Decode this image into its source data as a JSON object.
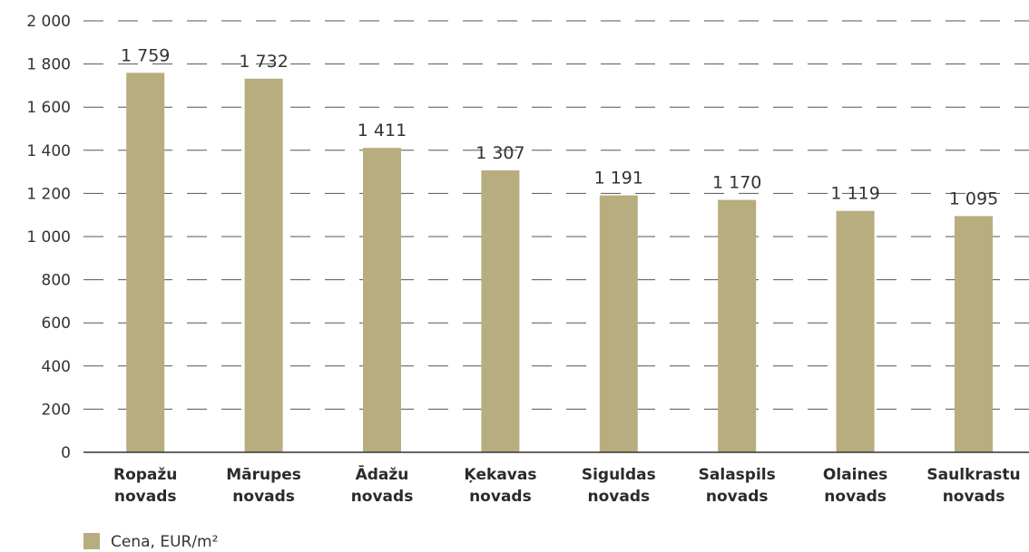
{
  "chart_data": {
    "type": "bar",
    "categories": [
      [
        "Ropažu",
        "novads"
      ],
      [
        "Mārupes",
        "novads"
      ],
      [
        "Ādažu",
        "novads"
      ],
      [
        "Ķekavas",
        "novads"
      ],
      [
        "Siguldas",
        "novads"
      ],
      [
        "Salaspils",
        "novads"
      ],
      [
        "Olaines",
        "novads"
      ],
      [
        "Saulkrastu",
        "novads"
      ]
    ],
    "series": [
      {
        "name": "Cena, EUR/m²",
        "color": "#b8ad7e",
        "values": [
          1759,
          1732,
          1411,
          1307,
          1191,
          1170,
          1119,
          1095
        ],
        "value_labels": [
          "1 759",
          "1 732",
          "1 411",
          "1 307",
          "1 191",
          "1 170",
          "1 119",
          "1 095"
        ]
      }
    ],
    "ylim": [
      0,
      2000
    ],
    "yticks": [
      0,
      200,
      400,
      600,
      800,
      1000,
      1200,
      1400,
      1600,
      1800,
      2000
    ],
    "ytick_labels": [
      "0",
      "200",
      "400",
      "600",
      "800",
      "1 000",
      "1 200",
      "1 400",
      "1 600",
      "1 800",
      "2 000"
    ],
    "grid": true,
    "legend_position": "bottom-left",
    "title": "",
    "xlabel": "",
    "ylabel": ""
  }
}
